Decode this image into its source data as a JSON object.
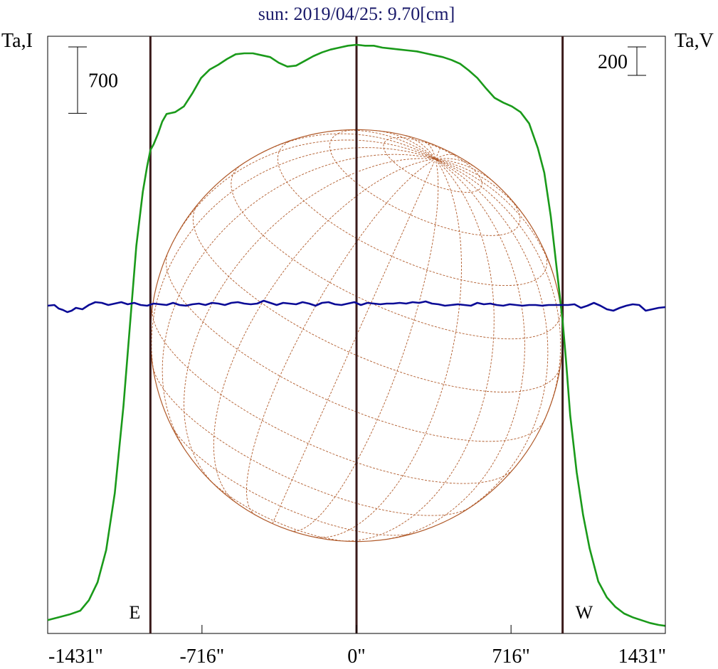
{
  "chart_data": {
    "type": "line",
    "title": "sun: 2019/04/25: 9.70[cm]",
    "left_axis_label": "Ta,I",
    "right_axis_label": "Ta,V",
    "x_ticks": [
      {
        "value": -1431,
        "label": "-1431\""
      },
      {
        "value": -716,
        "label": "-716\""
      },
      {
        "value": 0,
        "label": "0\""
      },
      {
        "value": 716,
        "label": "716\""
      },
      {
        "value": 1431,
        "label": "1431\""
      }
    ],
    "xlim": [
      -1431,
      1431
    ],
    "limb_markers": [
      {
        "value": -955,
        "label": "E"
      },
      {
        "value": 0,
        "label": ""
      },
      {
        "value": 955,
        "label": "W"
      }
    ],
    "scale_bars": [
      {
        "axis": "I",
        "value": 700,
        "label": "700"
      },
      {
        "axis": "V",
        "value": 200,
        "label": "200"
      }
    ],
    "disk_radius_arcsec": 955,
    "series": [
      {
        "name": "I",
        "color": "#1a9a1a",
        "y_range": [
          0,
          6300
        ],
        "x": [
          -1431,
          -1380,
          -1330,
          -1280,
          -1240,
          -1200,
          -1160,
          -1120,
          -1080,
          -1050,
          -1020,
          -990,
          -970,
          -955,
          -940,
          -920,
          -900,
          -880,
          -860,
          -840,
          -800,
          -760,
          -720,
          -680,
          -640,
          -600,
          -560,
          -520,
          -480,
          -440,
          -400,
          -360,
          -320,
          -280,
          -240,
          -200,
          -160,
          -120,
          -80,
          -40,
          0,
          40,
          80,
          120,
          160,
          200,
          240,
          280,
          320,
          360,
          400,
          440,
          480,
          520,
          560,
          600,
          640,
          680,
          720,
          760,
          800,
          840,
          870,
          900,
          930,
          955,
          970,
          990,
          1020,
          1050,
          1080,
          1120,
          1160,
          1200,
          1240,
          1280,
          1320,
          1360,
          1400,
          1431
        ],
        "values": [
          140,
          170,
          200,
          240,
          350,
          540,
          880,
          1480,
          2400,
          3250,
          4090,
          4660,
          4930,
          5100,
          5160,
          5270,
          5400,
          5480,
          5490,
          5500,
          5560,
          5700,
          5860,
          5950,
          6000,
          6060,
          6110,
          6120,
          6120,
          6100,
          6080,
          6020,
          5980,
          5990,
          6040,
          6090,
          6130,
          6160,
          6180,
          6200,
          6210,
          6200,
          6200,
          6180,
          6170,
          6160,
          6150,
          6140,
          6120,
          6100,
          6080,
          6050,
          6010,
          5940,
          5860,
          5750,
          5650,
          5600,
          5560,
          5500,
          5380,
          5120,
          4860,
          4400,
          3800,
          3300,
          2900,
          2300,
          1700,
          1250,
          900,
          550,
          380,
          280,
          210,
          170,
          140,
          110,
          90,
          80
        ]
      },
      {
        "name": "V",
        "color": "#0a0a96",
        "y_range": [
          -2300,
          1900
        ],
        "x": [
          -1431,
          -1400,
          -1380,
          -1360,
          -1340,
          -1320,
          -1300,
          -1270,
          -1240,
          -1210,
          -1180,
          -1150,
          -1120,
          -1090,
          -1060,
          -1030,
          -1000,
          -970,
          -940,
          -910,
          -880,
          -850,
          -820,
          -790,
          -760,
          -730,
          -700,
          -670,
          -640,
          -610,
          -580,
          -550,
          -520,
          -490,
          -460,
          -430,
          -400,
          -370,
          -340,
          -310,
          -280,
          -250,
          -220,
          -190,
          -160,
          -130,
          -100,
          -70,
          -40,
          -10,
          20,
          50,
          80,
          110,
          140,
          170,
          200,
          230,
          260,
          290,
          320,
          350,
          380,
          410,
          440,
          470,
          500,
          530,
          560,
          590,
          620,
          650,
          680,
          710,
          740,
          770,
          800,
          830,
          860,
          890,
          920,
          950,
          980,
          1010,
          1040,
          1070,
          1100,
          1130,
          1160,
          1190,
          1220,
          1250,
          1280,
          1310,
          1340,
          1370,
          1400,
          1431
        ],
        "values": [
          5,
          10,
          -15,
          -25,
          -40,
          -30,
          -10,
          -20,
          10,
          30,
          25,
          10,
          20,
          30,
          15,
          25,
          10,
          5,
          20,
          15,
          10,
          25,
          10,
          5,
          15,
          20,
          10,
          25,
          20,
          10,
          25,
          30,
          20,
          15,
          20,
          40,
          25,
          10,
          25,
          20,
          15,
          30,
          20,
          5,
          25,
          30,
          15,
          10,
          20,
          30,
          10,
          25,
          20,
          15,
          20,
          20,
          25,
          20,
          30,
          25,
          35,
          20,
          15,
          5,
          10,
          15,
          10,
          5,
          25,
          15,
          20,
          10,
          5,
          15,
          10,
          5,
          10,
          10,
          5,
          10,
          10,
          10,
          10,
          15,
          -10,
          5,
          25,
          5,
          -20,
          -30,
          -10,
          5,
          15,
          10,
          -30,
          -20,
          -10,
          -5
        ]
      }
    ]
  }
}
